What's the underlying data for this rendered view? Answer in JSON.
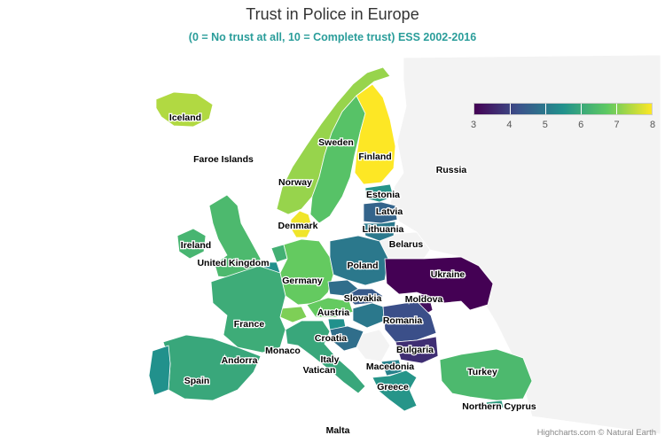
{
  "title": "Trust in Police in Europe",
  "subtitle": "(0 = No trust at all, 10 = Complete trust) ESS 2002-2016",
  "credits": "Highcharts.com © Natural Earth",
  "legend": {
    "min": 3,
    "max": 8,
    "ticks": [
      "3",
      "4",
      "5",
      "6",
      "7",
      "8"
    ],
    "colors": [
      "#440154",
      "#3b528b",
      "#21918c",
      "#5ec962",
      "#fde725"
    ]
  },
  "map_data": {
    "type": "choropleth",
    "metric": "Trust in Police",
    "countries": [
      {
        "name": "Iceland",
        "value": 7.4
      },
      {
        "name": "Faroe Islands",
        "value": null
      },
      {
        "name": "Norway",
        "value": 7.2
      },
      {
        "name": "Sweden",
        "value": 6.6
      },
      {
        "name": "Finland",
        "value": 8.0
      },
      {
        "name": "Russia",
        "value": null
      },
      {
        "name": "Estonia",
        "value": 5.6
      },
      {
        "name": "Latvia",
        "value": 4.6
      },
      {
        "name": "Lithuania",
        "value": 5.0
      },
      {
        "name": "Belarus",
        "value": null
      },
      {
        "name": "Denmark",
        "value": 7.9
      },
      {
        "name": "Ireland",
        "value": 6.3
      },
      {
        "name": "United Kingdom",
        "value": 6.4
      },
      {
        "name": "Poland",
        "value": 5.0
      },
      {
        "name": "Ukraine",
        "value": 3.0
      },
      {
        "name": "Germany",
        "value": 6.8
      },
      {
        "name": "Moldova",
        "value": 3.2
      },
      {
        "name": "Slovakia",
        "value": 4.4
      },
      {
        "name": "Austria",
        "value": 6.8
      },
      {
        "name": "France",
        "value": 6.1
      },
      {
        "name": "Romania",
        "value": 4.2
      },
      {
        "name": "Croatia",
        "value": 4.8
      },
      {
        "name": "Bulgaria",
        "value": 3.7
      },
      {
        "name": "Monaco",
        "value": null
      },
      {
        "name": "Andorra",
        "value": null
      },
      {
        "name": "Italy",
        "value": 6.0
      },
      {
        "name": "Vatican",
        "value": null
      },
      {
        "name": "Macedonia",
        "value": 5.2
      },
      {
        "name": "Spain",
        "value": 6.0
      },
      {
        "name": "Portugal",
        "value": 5.5
      },
      {
        "name": "Greece",
        "value": 5.6
      },
      {
        "name": "Turkey",
        "value": 6.4
      },
      {
        "name": "Northern Cyprus",
        "value": null
      },
      {
        "name": "Malta",
        "value": null
      },
      {
        "name": "Switzerland",
        "value": 7.0
      },
      {
        "name": "Czech Republic",
        "value": 4.8
      },
      {
        "name": "Hungary",
        "value": 5.0
      },
      {
        "name": "Slovenia",
        "value": 5.5
      },
      {
        "name": "Belgium",
        "value": 5.5
      },
      {
        "name": "Netherlands",
        "value": 6.2
      },
      {
        "name": "Serbia",
        "value": null
      },
      {
        "name": "Cyprus",
        "value": 5.8
      }
    ]
  }
}
